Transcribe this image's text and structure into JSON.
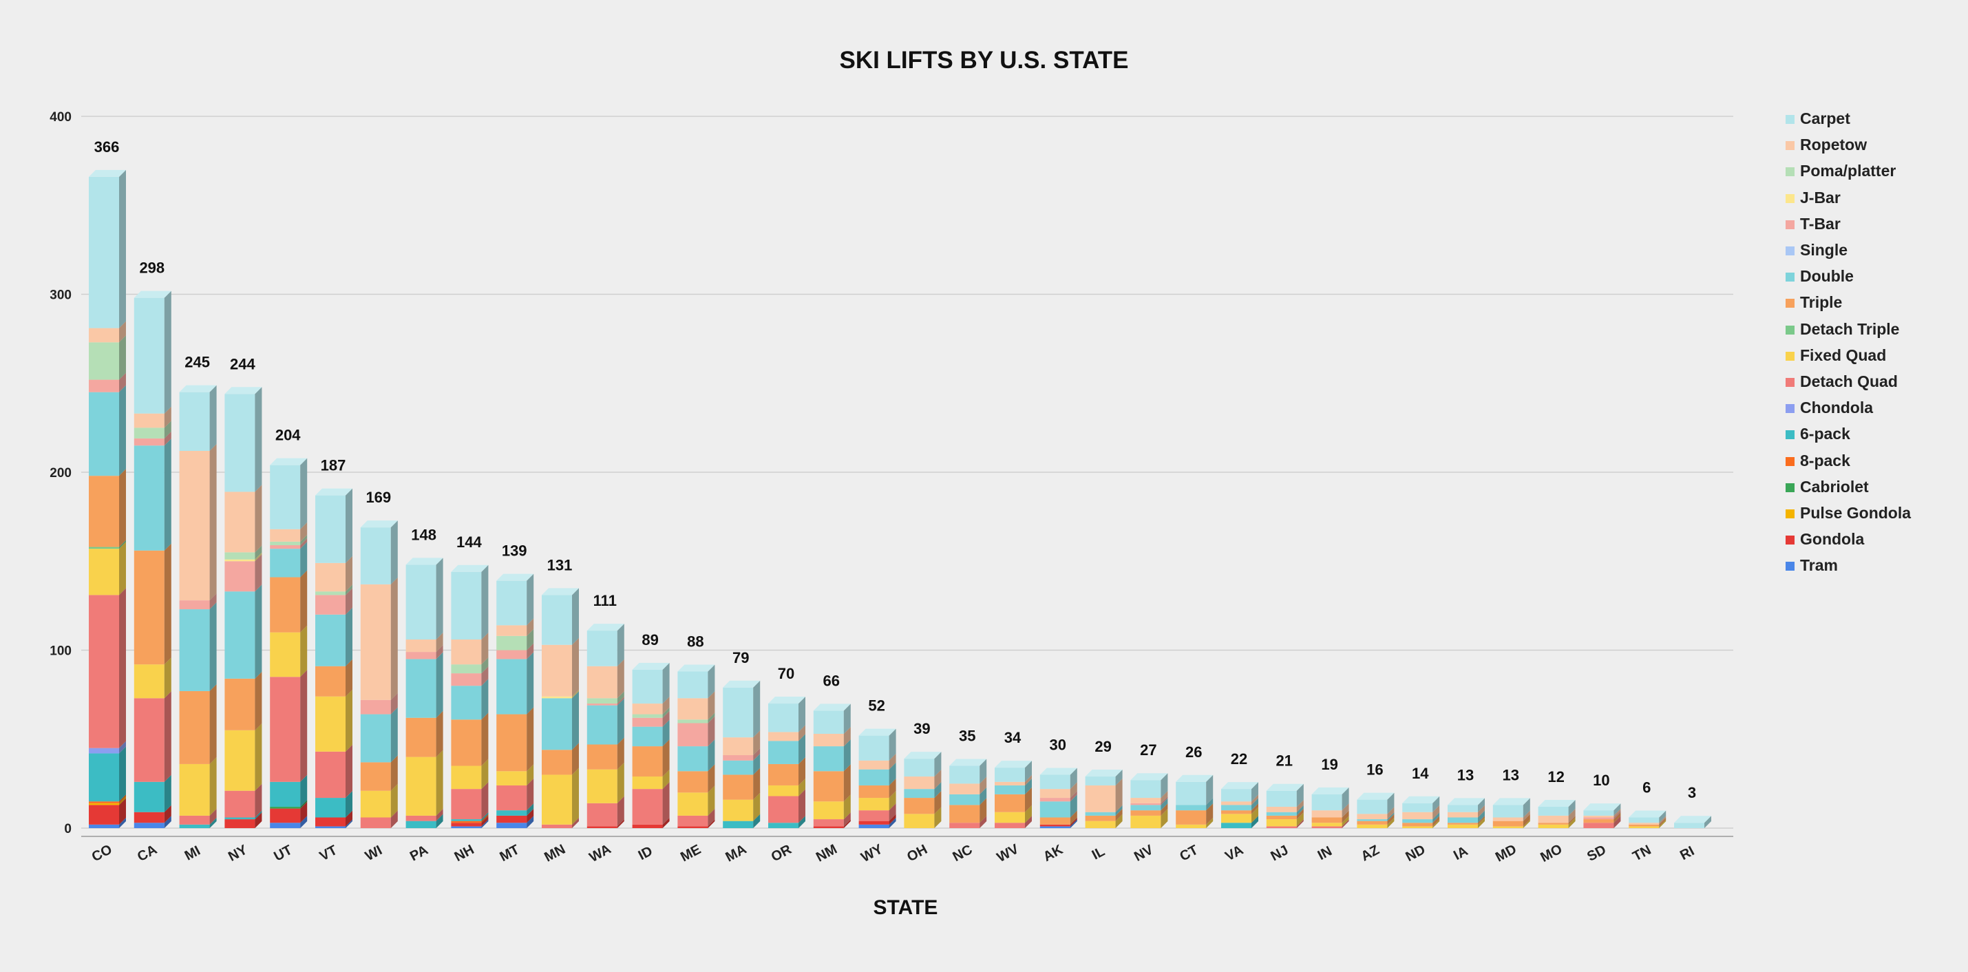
{
  "chart_data": {
    "type": "bar",
    "stacked": true,
    "title": "SKI LIFTS BY U.S. STATE",
    "xlabel": "STATE",
    "ylabel": "",
    "ylim": [
      0,
      400
    ],
    "yticks": [
      0,
      100,
      200,
      300,
      400
    ],
    "grid": true,
    "legend_position": "right",
    "categories": [
      "CO",
      "CA",
      "MI",
      "NY",
      "UT",
      "VT",
      "WI",
      "PA",
      "NH",
      "MT",
      "MN",
      "WA",
      "ID",
      "ME",
      "MA",
      "OR",
      "NM",
      "WY",
      "OH",
      "NC",
      "WV",
      "AK",
      "IL",
      "NV",
      "CT",
      "VA",
      "NJ",
      "IN",
      "AZ",
      "ND",
      "IA",
      "MD",
      "MO",
      "SD",
      "TN",
      "RI"
    ],
    "totals": [
      366,
      298,
      245,
      244,
      204,
      187,
      169,
      148,
      144,
      139,
      131,
      111,
      89,
      88,
      79,
      70,
      66,
      52,
      39,
      35,
      34,
      30,
      29,
      27,
      26,
      22,
      21,
      19,
      16,
      14,
      13,
      13,
      12,
      10,
      6,
      3
    ],
    "series": [
      {
        "name": "Tram",
        "color": "#4a86e8",
        "values": [
          2,
          3,
          0,
          0,
          3,
          1,
          0,
          0,
          1,
          3,
          0,
          0,
          0,
          0,
          0,
          0,
          0,
          2,
          0,
          0,
          0,
          1,
          0,
          0,
          0,
          0,
          0,
          0,
          0,
          0,
          0,
          0,
          0,
          0,
          0,
          0
        ]
      },
      {
        "name": "Gondola",
        "color": "#e53935",
        "values": [
          11,
          6,
          0,
          5,
          8,
          5,
          0,
          0,
          2,
          4,
          0,
          1,
          2,
          1,
          0,
          0,
          1,
          2,
          0,
          0,
          0,
          1,
          0,
          0,
          0,
          0,
          0,
          0,
          0,
          0,
          0,
          0,
          0,
          0,
          0,
          0
        ]
      },
      {
        "name": "Pulse Gondola",
        "color": "#f4b400",
        "values": [
          1,
          0,
          0,
          0,
          0,
          0,
          0,
          0,
          0,
          0,
          0,
          0,
          0,
          0,
          0,
          0,
          0,
          0,
          0,
          0,
          0,
          0,
          0,
          0,
          0,
          0,
          0,
          0,
          0,
          0,
          0,
          0,
          0,
          0,
          0,
          0
        ]
      },
      {
        "name": "Cabriolet",
        "color": "#3aa657",
        "values": [
          0,
          0,
          0,
          0,
          1,
          0,
          0,
          0,
          0,
          0,
          0,
          0,
          0,
          0,
          0,
          0,
          0,
          0,
          0,
          0,
          0,
          0,
          0,
          0,
          0,
          0,
          0,
          0,
          0,
          0,
          0,
          0,
          0,
          0,
          0,
          0
        ]
      },
      {
        "name": "8-pack",
        "color": "#fa6d1e",
        "values": [
          1,
          0,
          0,
          0,
          0,
          0,
          0,
          0,
          1,
          0,
          0,
          0,
          0,
          0,
          0,
          0,
          0,
          0,
          0,
          0,
          0,
          0,
          0,
          0,
          0,
          0,
          0,
          0,
          0,
          0,
          0,
          0,
          0,
          0,
          0,
          0
        ]
      },
      {
        "name": "6-pack",
        "color": "#3cbcc4",
        "values": [
          27,
          17,
          2,
          1,
          14,
          11,
          0,
          4,
          1,
          3,
          0,
          0,
          0,
          0,
          4,
          3,
          0,
          0,
          0,
          0,
          0,
          0,
          0,
          0,
          0,
          3,
          0,
          0,
          0,
          0,
          0,
          0,
          0,
          0,
          0,
          0
        ]
      },
      {
        "name": "Chondola",
        "color": "#8c9ef0",
        "values": [
          3,
          0,
          0,
          0,
          0,
          0,
          0,
          0,
          0,
          0,
          0,
          0,
          0,
          0,
          0,
          0,
          0,
          0,
          0,
          0,
          0,
          0,
          0,
          0,
          0,
          0,
          0,
          0,
          0,
          0,
          0,
          0,
          0,
          0,
          0,
          0
        ]
      },
      {
        "name": "Detach Quad",
        "color": "#f07b78",
        "values": [
          86,
          47,
          5,
          15,
          59,
          26,
          6,
          3,
          17,
          14,
          2,
          13,
          20,
          6,
          0,
          15,
          4,
          6,
          0,
          3,
          3,
          0,
          0,
          0,
          0,
          0,
          1,
          1,
          0,
          0,
          0,
          0,
          0,
          3,
          0,
          0
        ]
      },
      {
        "name": "Fixed Quad",
        "color": "#f9d24c",
        "values": [
          26,
          19,
          29,
          34,
          25,
          31,
          15,
          33,
          13,
          8,
          28,
          19,
          7,
          13,
          12,
          6,
          10,
          7,
          8,
          0,
          6,
          0,
          4,
          7,
          2,
          5,
          4,
          2,
          2,
          1,
          2,
          1,
          2,
          0,
          1,
          0
        ]
      },
      {
        "name": "Detach Triple",
        "color": "#7bc98a",
        "values": [
          1,
          0,
          0,
          0,
          0,
          0,
          0,
          0,
          0,
          0,
          0,
          0,
          0,
          0,
          0,
          0,
          0,
          0,
          0,
          0,
          0,
          0,
          0,
          0,
          0,
          0,
          0,
          0,
          0,
          0,
          0,
          0,
          0,
          0,
          0,
          0
        ]
      },
      {
        "name": "Triple",
        "color": "#f7a15c",
        "values": [
          40,
          64,
          41,
          29,
          31,
          17,
          16,
          22,
          26,
          32,
          14,
          14,
          17,
          12,
          14,
          12,
          17,
          7,
          9,
          10,
          10,
          4,
          3,
          3,
          8,
          2,
          2,
          3,
          2,
          2,
          1,
          3,
          1,
          2,
          1,
          0
        ]
      },
      {
        "name": "Double",
        "color": "#7ed3db",
        "values": [
          47,
          59,
          46,
          49,
          16,
          29,
          27,
          33,
          19,
          31,
          29,
          22,
          11,
          14,
          8,
          13,
          14,
          9,
          5,
          6,
          5,
          9,
          2,
          3,
          3,
          3,
          2,
          0,
          1,
          2,
          3,
          0,
          0,
          0,
          0,
          0
        ]
      },
      {
        "name": "Single",
        "color": "#a9c7f5",
        "values": [
          0,
          0,
          0,
          0,
          0,
          0,
          0,
          0,
          0,
          0,
          0,
          0,
          0,
          0,
          0,
          0,
          0,
          0,
          0,
          0,
          0,
          0,
          0,
          0,
          0,
          0,
          0,
          0,
          0,
          0,
          0,
          0,
          0,
          0,
          0,
          0
        ]
      },
      {
        "name": "T-Bar",
        "color": "#f4a7a0",
        "values": [
          7,
          4,
          5,
          17,
          2,
          11,
          8,
          4,
          7,
          5,
          0,
          1,
          5,
          13,
          3,
          0,
          0,
          0,
          0,
          0,
          0,
          2,
          0,
          1,
          0,
          0,
          0,
          0,
          0,
          0,
          0,
          0,
          0,
          1,
          0,
          0
        ]
      },
      {
        "name": "J-Bar",
        "color": "#fce68c",
        "values": [
          0,
          0,
          0,
          1,
          0,
          0,
          0,
          0,
          0,
          0,
          1,
          0,
          0,
          0,
          0,
          0,
          0,
          0,
          0,
          0,
          0,
          0,
          0,
          0,
          0,
          0,
          0,
          0,
          0,
          0,
          0,
          0,
          0,
          0,
          0,
          0
        ]
      },
      {
        "name": "Poma/platter",
        "color": "#b5dfb6",
        "values": [
          21,
          6,
          0,
          4,
          2,
          2,
          0,
          0,
          5,
          8,
          0,
          3,
          2,
          2,
          0,
          0,
          0,
          0,
          0,
          0,
          0,
          0,
          0,
          0,
          0,
          0,
          0,
          0,
          0,
          0,
          0,
          0,
          0,
          0,
          0,
          0
        ]
      },
      {
        "name": "Ropetow",
        "color": "#fac8a6",
        "values": [
          8,
          8,
          84,
          34,
          7,
          16,
          65,
          7,
          14,
          6,
          29,
          18,
          6,
          12,
          10,
          5,
          7,
          5,
          7,
          6,
          2,
          5,
          15,
          3,
          0,
          2,
          3,
          4,
          3,
          4,
          3,
          2,
          4,
          1,
          1,
          0
        ]
      },
      {
        "name": "Carpet",
        "color": "#b2e4ea",
        "values": [
          85,
          65,
          33,
          55,
          36,
          38,
          32,
          42,
          38,
          25,
          28,
          20,
          19,
          15,
          28,
          16,
          13,
          14,
          10,
          10,
          8,
          8,
          5,
          10,
          13,
          7,
          9,
          9,
          8,
          5,
          4,
          7,
          5,
          3,
          3,
          3
        ]
      }
    ]
  }
}
